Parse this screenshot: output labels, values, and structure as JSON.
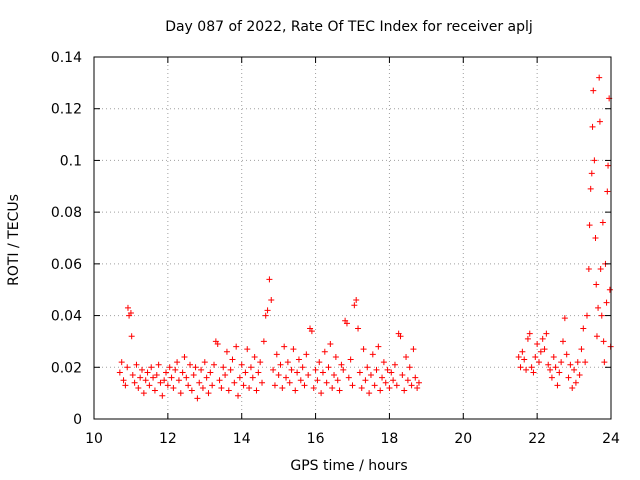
{
  "chart_data": {
    "type": "scatter",
    "title": "Day 087 of 2022, Rate Of TEC Index for receiver aplj",
    "xlabel": "GPS time / hours",
    "ylabel": "ROTI / TECUs",
    "xlim": [
      10,
      24
    ],
    "ylim": [
      0,
      0.14
    ],
    "x_ticks": [
      10,
      12,
      14,
      16,
      18,
      20,
      22,
      24
    ],
    "x_tick_labels": [
      "10",
      "12",
      "14",
      "16",
      "18",
      "20",
      "22",
      "24"
    ],
    "y_ticks": [
      0,
      0.02,
      0.04,
      0.06,
      0.08,
      0.1,
      0.12,
      0.14
    ],
    "y_tick_labels": [
      "0",
      "0.02",
      "0.04",
      "0.06",
      "0.08",
      "0.1",
      "0.12",
      "0.14"
    ],
    "grid": true,
    "marker": "plus",
    "color": "#ff0000",
    "series": [
      {
        "name": "ROTI",
        "points": [
          [
            10.7,
            0.018
          ],
          [
            10.75,
            0.022
          ],
          [
            10.8,
            0.015
          ],
          [
            10.85,
            0.013
          ],
          [
            10.9,
            0.02
          ],
          [
            10.92,
            0.043
          ],
          [
            10.95,
            0.04
          ],
          [
            11.0,
            0.041
          ],
          [
            11.02,
            0.032
          ],
          [
            11.05,
            0.017
          ],
          [
            11.1,
            0.014
          ],
          [
            11.15,
            0.021
          ],
          [
            11.2,
            0.012
          ],
          [
            11.25,
            0.016
          ],
          [
            11.3,
            0.019
          ],
          [
            11.35,
            0.01
          ],
          [
            11.4,
            0.015
          ],
          [
            11.45,
            0.018
          ],
          [
            11.5,
            0.013
          ],
          [
            11.55,
            0.02
          ],
          [
            11.6,
            0.016
          ],
          [
            11.65,
            0.011
          ],
          [
            11.7,
            0.017
          ],
          [
            11.75,
            0.021
          ],
          [
            11.8,
            0.014
          ],
          [
            11.85,
            0.009
          ],
          [
            11.9,
            0.015
          ],
          [
            11.95,
            0.018
          ],
          [
            12.0,
            0.013
          ],
          [
            12.05,
            0.02
          ],
          [
            12.1,
            0.016
          ],
          [
            12.15,
            0.012
          ],
          [
            12.2,
            0.019
          ],
          [
            12.25,
            0.022
          ],
          [
            12.3,
            0.015
          ],
          [
            12.35,
            0.01
          ],
          [
            12.4,
            0.018
          ],
          [
            12.45,
            0.024
          ],
          [
            12.5,
            0.016
          ],
          [
            12.55,
            0.013
          ],
          [
            12.6,
            0.021
          ],
          [
            12.65,
            0.011
          ],
          [
            12.7,
            0.017
          ],
          [
            12.75,
            0.02
          ],
          [
            12.8,
            0.008
          ],
          [
            12.85,
            0.014
          ],
          [
            12.9,
            0.019
          ],
          [
            12.95,
            0.012
          ],
          [
            13.0,
            0.022
          ],
          [
            13.05,
            0.016
          ],
          [
            13.1,
            0.01
          ],
          [
            13.15,
            0.018
          ],
          [
            13.2,
            0.013
          ],
          [
            13.25,
            0.021
          ],
          [
            13.3,
            0.03
          ],
          [
            13.35,
            0.029
          ],
          [
            13.4,
            0.015
          ],
          [
            13.45,
            0.012
          ],
          [
            13.5,
            0.02
          ],
          [
            13.55,
            0.017
          ],
          [
            13.6,
            0.026
          ],
          [
            13.65,
            0.011
          ],
          [
            13.7,
            0.019
          ],
          [
            13.75,
            0.023
          ],
          [
            13.8,
            0.014
          ],
          [
            13.85,
            0.028
          ],
          [
            13.9,
            0.009
          ],
          [
            13.95,
            0.016
          ],
          [
            14.0,
            0.021
          ],
          [
            14.05,
            0.013
          ],
          [
            14.1,
            0.018
          ],
          [
            14.15,
            0.027
          ],
          [
            14.2,
            0.012
          ],
          [
            14.25,
            0.02
          ],
          [
            14.3,
            0.016
          ],
          [
            14.35,
            0.024
          ],
          [
            14.4,
            0.011
          ],
          [
            14.45,
            0.018
          ],
          [
            14.5,
            0.022
          ],
          [
            14.55,
            0.014
          ],
          [
            14.6,
            0.03
          ],
          [
            14.65,
            0.04
          ],
          [
            14.7,
            0.042
          ],
          [
            14.75,
            0.054
          ],
          [
            14.8,
            0.046
          ],
          [
            14.85,
            0.019
          ],
          [
            14.9,
            0.013
          ],
          [
            14.95,
            0.025
          ],
          [
            15.0,
            0.017
          ],
          [
            15.05,
            0.021
          ],
          [
            15.1,
            0.012
          ],
          [
            15.15,
            0.028
          ],
          [
            15.2,
            0.016
          ],
          [
            15.25,
            0.022
          ],
          [
            15.3,
            0.014
          ],
          [
            15.35,
            0.019
          ],
          [
            15.4,
            0.027
          ],
          [
            15.45,
            0.011
          ],
          [
            15.5,
            0.018
          ],
          [
            15.55,
            0.023
          ],
          [
            15.6,
            0.015
          ],
          [
            15.65,
            0.02
          ],
          [
            15.7,
            0.013
          ],
          [
            15.75,
            0.025
          ],
          [
            15.8,
            0.017
          ],
          [
            15.85,
            0.035
          ],
          [
            15.9,
            0.034
          ],
          [
            15.95,
            0.012
          ],
          [
            16.0,
            0.019
          ],
          [
            16.05,
            0.015
          ],
          [
            16.1,
            0.022
          ],
          [
            16.15,
            0.01
          ],
          [
            16.2,
            0.018
          ],
          [
            16.25,
            0.026
          ],
          [
            16.3,
            0.014
          ],
          [
            16.35,
            0.02
          ],
          [
            16.4,
            0.029
          ],
          [
            16.45,
            0.012
          ],
          [
            16.5,
            0.017
          ],
          [
            16.55,
            0.024
          ],
          [
            16.6,
            0.015
          ],
          [
            16.65,
            0.011
          ],
          [
            16.7,
            0.021
          ],
          [
            16.75,
            0.019
          ],
          [
            16.8,
            0.038
          ],
          [
            16.85,
            0.037
          ],
          [
            16.9,
            0.016
          ],
          [
            16.95,
            0.023
          ],
          [
            17.0,
            0.013
          ],
          [
            17.05,
            0.044
          ],
          [
            17.1,
            0.046
          ],
          [
            17.15,
            0.035
          ],
          [
            17.2,
            0.018
          ],
          [
            17.25,
            0.012
          ],
          [
            17.3,
            0.027
          ],
          [
            17.35,
            0.015
          ],
          [
            17.4,
            0.02
          ],
          [
            17.45,
            0.01
          ],
          [
            17.5,
            0.017
          ],
          [
            17.55,
            0.025
          ],
          [
            17.6,
            0.013
          ],
          [
            17.65,
            0.019
          ],
          [
            17.7,
            0.028
          ],
          [
            17.75,
            0.011
          ],
          [
            17.8,
            0.016
          ],
          [
            17.85,
            0.022
          ],
          [
            17.9,
            0.014
          ],
          [
            17.95,
            0.019
          ],
          [
            18.0,
            0.012
          ],
          [
            18.05,
            0.018
          ],
          [
            18.1,
            0.015
          ],
          [
            18.15,
            0.021
          ],
          [
            18.2,
            0.013
          ],
          [
            18.25,
            0.033
          ],
          [
            18.3,
            0.032
          ],
          [
            18.35,
            0.017
          ],
          [
            18.4,
            0.011
          ],
          [
            18.45,
            0.024
          ],
          [
            18.5,
            0.015
          ],
          [
            18.55,
            0.02
          ],
          [
            18.6,
            0.013
          ],
          [
            18.65,
            0.027
          ],
          [
            18.7,
            0.016
          ],
          [
            18.75,
            0.012
          ],
          [
            18.8,
            0.014
          ],
          [
            21.5,
            0.024
          ],
          [
            21.55,
            0.02
          ],
          [
            21.6,
            0.026
          ],
          [
            21.65,
            0.023
          ],
          [
            21.7,
            0.019
          ],
          [
            21.75,
            0.031
          ],
          [
            21.8,
            0.033
          ],
          [
            21.85,
            0.02
          ],
          [
            21.9,
            0.018
          ],
          [
            21.95,
            0.024
          ],
          [
            22.0,
            0.029
          ],
          [
            22.05,
            0.022
          ],
          [
            22.1,
            0.026
          ],
          [
            22.15,
            0.031
          ],
          [
            22.2,
            0.027
          ],
          [
            22.25,
            0.033
          ],
          [
            22.3,
            0.021
          ],
          [
            22.35,
            0.019
          ],
          [
            22.4,
            0.016
          ],
          [
            22.45,
            0.024
          ],
          [
            22.5,
            0.02
          ],
          [
            22.55,
            0.013
          ],
          [
            22.6,
            0.018
          ],
          [
            22.65,
            0.022
          ],
          [
            22.7,
            0.03
          ],
          [
            22.75,
            0.039
          ],
          [
            22.8,
            0.025
          ],
          [
            22.85,
            0.016
          ],
          [
            22.9,
            0.021
          ],
          [
            22.95,
            0.012
          ],
          [
            23.0,
            0.019
          ],
          [
            23.05,
            0.014
          ],
          [
            23.1,
            0.022
          ],
          [
            23.15,
            0.017
          ],
          [
            23.2,
            0.027
          ],
          [
            23.25,
            0.035
          ],
          [
            23.3,
            0.022
          ],
          [
            23.35,
            0.04
          ],
          [
            23.4,
            0.058
          ],
          [
            23.42,
            0.075
          ],
          [
            23.45,
            0.089
          ],
          [
            23.48,
            0.095
          ],
          [
            23.5,
            0.113
          ],
          [
            23.52,
            0.127
          ],
          [
            23.55,
            0.1
          ],
          [
            23.58,
            0.07
          ],
          [
            23.6,
            0.052
          ],
          [
            23.62,
            0.032
          ],
          [
            23.65,
            0.043
          ],
          [
            23.68,
            0.132
          ],
          [
            23.7,
            0.115
          ],
          [
            23.72,
            0.058
          ],
          [
            23.75,
            0.04
          ],
          [
            23.78,
            0.076
          ],
          [
            23.8,
            0.03
          ],
          [
            23.82,
            0.022
          ],
          [
            23.85,
            0.06
          ],
          [
            23.88,
            0.045
          ],
          [
            23.9,
            0.088
          ],
          [
            23.92,
            0.098
          ],
          [
            23.95,
            0.124
          ],
          [
            23.97,
            0.05
          ],
          [
            23.99,
            0.028
          ]
        ]
      }
    ]
  }
}
